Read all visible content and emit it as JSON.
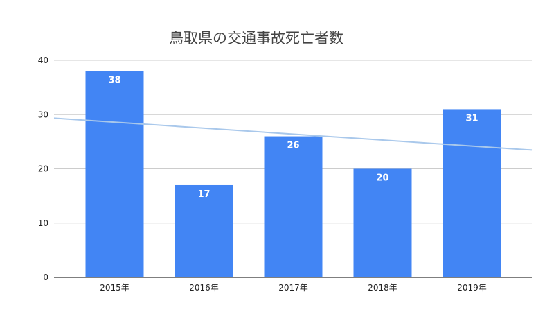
{
  "chart_data": {
    "type": "bar",
    "title": "鳥取県の交通事故死亡者数",
    "categories": [
      "2015年",
      "2016年",
      "2017年",
      "2018年",
      "2019年"
    ],
    "values": [
      38,
      17,
      26,
      20,
      31
    ],
    "data_labels": [
      "38",
      "17",
      "26",
      "20",
      "31"
    ],
    "ylim": [
      0,
      40
    ],
    "yticks": [
      "0",
      "10",
      "20",
      "30",
      "40"
    ],
    "grid": true,
    "legend": "none",
    "trendline": {
      "type": "linear"
    },
    "colors": {
      "bar": "#4285f4",
      "trendline": "#a9c8eb",
      "grid": "#cccccc"
    }
  }
}
